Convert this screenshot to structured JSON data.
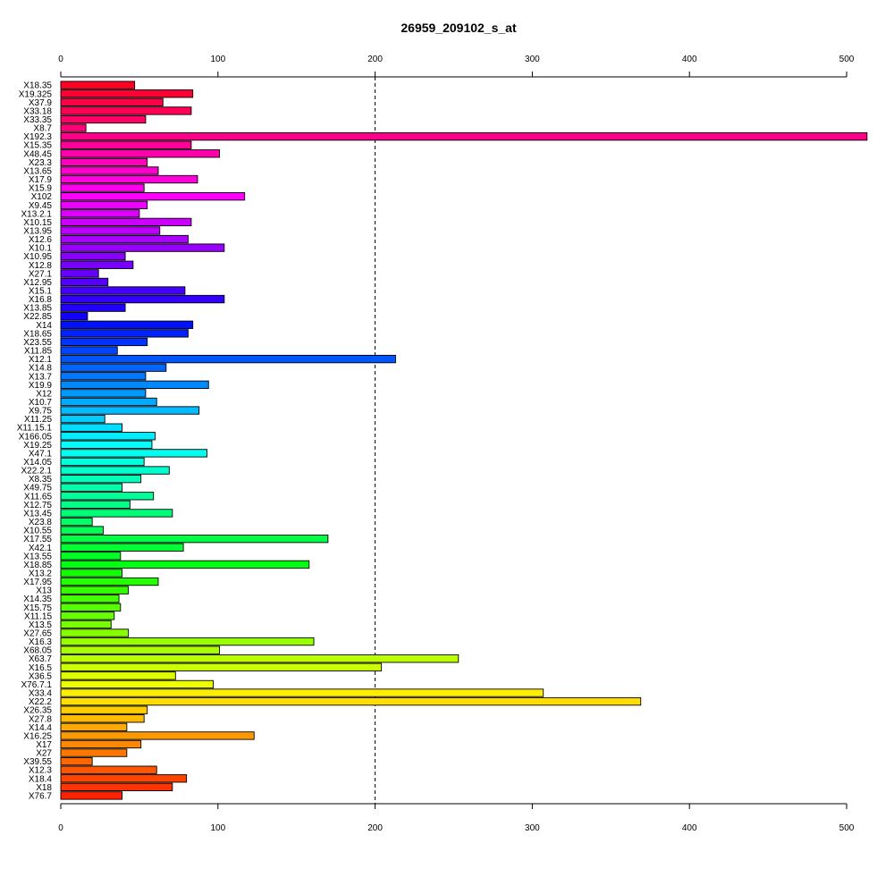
{
  "chart_data": {
    "type": "bar",
    "orientation": "horizontal",
    "title": "26959_209102_s_at",
    "xlabel": "",
    "ylabel": "",
    "xlim": [
      0,
      513
    ],
    "x_ticks": [
      0,
      100,
      200,
      300,
      400,
      500
    ],
    "x_tick_labels": [
      "0",
      "100",
      "200",
      "300",
      "400",
      "500"
    ],
    "reference_line": {
      "value": 200,
      "style": "dashed"
    },
    "grid": false,
    "categories": [
      "X18.35",
      "X19.325",
      "X37.9",
      "X33.18",
      "X33.35",
      "X8.7",
      "X192.3",
      "X15.35",
      "X48.45",
      "X23.3",
      "X13.65",
      "X17.9",
      "X15.9",
      "X102",
      "X9.45",
      "X13.2.1",
      "X10.15",
      "X13.95",
      "X12.6",
      "X10.1",
      "X10.95",
      "X12.8",
      "X27.1",
      "X12.95",
      "X15.1",
      "X16.8",
      "X13.85",
      "X22.85",
      "X14",
      "X18.65",
      "X23.55",
      "X11.85",
      "X12.1",
      "X14.8",
      "X13.7",
      "X19.9",
      "X12",
      "X10.7",
      "X9.75",
      "X11.25",
      "X11.15.1",
      "X166.05",
      "X19.25",
      "X47.1",
      "X14.05",
      "X22.2.1",
      "X8.35",
      "X49.75",
      "X11.65",
      "X12.75",
      "X13.45",
      "X23.8",
      "X10.55",
      "X17.55",
      "X42.1",
      "X13.55",
      "X18.85",
      "X13.2",
      "X17.95",
      "X13",
      "X14.35",
      "X15.75",
      "X11.15",
      "X13.5",
      "X27.65",
      "X16.3",
      "X68.05",
      "X63.7",
      "X16.5",
      "X36.5",
      "X76.7.1",
      "X33.4",
      "X22.2",
      "X26.35",
      "X27.8",
      "X14.4",
      "X16.25",
      "X17",
      "X27",
      "X39.55",
      "X12.3",
      "X18.4",
      "X18",
      "X76.7"
    ],
    "values": [
      47,
      84,
      65,
      83,
      54,
      16,
      513,
      83,
      101,
      55,
      62,
      87,
      53,
      117,
      55,
      50,
      83,
      63,
      81,
      104,
      41,
      46,
      24,
      30,
      79,
      104,
      41,
      17,
      84,
      81,
      55,
      36,
      213,
      67,
      54,
      94,
      54,
      61,
      88,
      28,
      39,
      60,
      58,
      93,
      53,
      69,
      51,
      39,
      59,
      44,
      71,
      20,
      27,
      170,
      78,
      38,
      158,
      39,
      62,
      43,
      37,
      38,
      34,
      32,
      43,
      161,
      101,
      253,
      204,
      73,
      97,
      307,
      369,
      55,
      53,
      42,
      123,
      51,
      42,
      20,
      61,
      80,
      71,
      39
    ],
    "colors": [
      "#ff0022",
      "#ff0033",
      "#ff0044",
      "#ff0055",
      "#ff0066",
      "#ff0077",
      "#ff0088",
      "#ff0099",
      "#ff00aa",
      "#ff00bb",
      "#ff00cc",
      "#ff00dd",
      "#ff00ee",
      "#ff00ff",
      "#ee00ff",
      "#dd00ff",
      "#cc00ff",
      "#bb00ff",
      "#aa00ff",
      "#9900ff",
      "#8800ff",
      "#7700ff",
      "#6600ff",
      "#5500ff",
      "#4400ff",
      "#3300ff",
      "#2200ff",
      "#1100ff",
      "#0011ff",
      "#0022ff",
      "#0033ff",
      "#0044ff",
      "#0055ff",
      "#0066ff",
      "#0077ff",
      "#0088ff",
      "#0099ff",
      "#00aaff",
      "#00bbff",
      "#00ccff",
      "#00ddff",
      "#00eeff",
      "#00ffff",
      "#00ffee",
      "#00ffdd",
      "#00ffcc",
      "#00ffbb",
      "#00ffaa",
      "#00ff99",
      "#00ff88",
      "#00ff77",
      "#00ff66",
      "#00ff55",
      "#00ff44",
      "#00ff33",
      "#00ff22",
      "#00ff11",
      "#11ff00",
      "#22ff00",
      "#33ff00",
      "#44ff00",
      "#55ff00",
      "#66ff00",
      "#77ff00",
      "#88ff00",
      "#99ff00",
      "#aaff00",
      "#bbff00",
      "#ccff00",
      "#ddff00",
      "#eeff00",
      "#ffee00",
      "#ffdd00",
      "#ffcc00",
      "#ffbb00",
      "#ffaa00",
      "#ff9900",
      "#ff8800",
      "#ff7700",
      "#ff6600",
      "#ff5500",
      "#ff4400",
      "#ff3300",
      "#ff2200"
    ]
  }
}
